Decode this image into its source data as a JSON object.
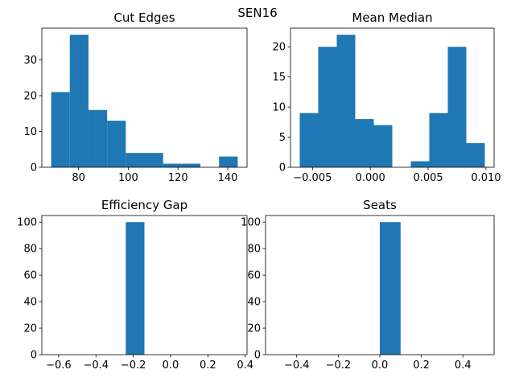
{
  "title": "SEN16",
  "chart_data": [
    {
      "type": "histogram",
      "title": "Cut Edges",
      "color": "#1f77b4",
      "bins": [
        69,
        76.5,
        84,
        91.5,
        99,
        106.5,
        114,
        121.5,
        129,
        136.5,
        144
      ],
      "values": [
        21,
        37,
        16,
        13,
        4,
        4,
        1,
        1,
        0,
        3
      ],
      "xlim": [
        65.25,
        147.75
      ],
      "xticks": [
        80,
        100,
        120,
        140
      ],
      "ylim": [
        0,
        38.85
      ],
      "yticks": [
        0,
        10,
        20,
        30
      ]
    },
    {
      "type": "histogram",
      "title": "Mean Median",
      "color": "#1f77b4",
      "bins": [
        -0.0061,
        -0.0045,
        -0.0029,
        -0.0013,
        0.0003,
        0.0019,
        0.0035,
        0.0051,
        0.0067,
        0.0083,
        0.0099
      ],
      "values": [
        9,
        20,
        22,
        8,
        7,
        0,
        1,
        9,
        20,
        4
      ],
      "xlim": [
        -0.0069,
        0.0107
      ],
      "xticks": [
        {
          "value": -0.005,
          "label": "−0.005"
        },
        {
          "value": 0,
          "label": "0.000"
        },
        0.005,
        {
          "value": 0.01,
          "label": "0.010"
        }
      ],
      "ylim": [
        0,
        23.1
      ],
      "yticks": [
        0,
        5,
        10,
        15,
        20
      ]
    },
    {
      "type": "histogram",
      "title": "Efficiency Gap",
      "color": "#1f77b4",
      "bins": [
        -0.64,
        -0.54,
        -0.44,
        -0.34,
        -0.24,
        -0.14,
        -0.04,
        0.06,
        0.16,
        0.26,
        0.36
      ],
      "values": [
        0,
        0,
        0,
        0,
        100,
        0,
        0,
        0,
        0,
        0
      ],
      "xlim": [
        -0.69,
        0.41
      ],
      "xticks": [
        {
          "value": -0.6,
          "label": "−0.6"
        },
        {
          "value": -0.4,
          "label": "−0.4"
        },
        {
          "value": -0.2,
          "label": "−0.2"
        },
        {
          "value": 0,
          "label": "0.0"
        },
        0.2,
        0.4
      ],
      "ylim": [
        0,
        105
      ],
      "yticks": [
        0,
        20,
        40,
        60,
        80,
        100
      ]
    },
    {
      "type": "histogram",
      "title": "Seats",
      "color": "#1f77b4",
      "bins": [
        -0.5,
        -0.4,
        -0.3,
        -0.2,
        -0.1,
        0,
        0.1,
        0.2,
        0.3,
        0.4,
        0.5
      ],
      "values": [
        0,
        0,
        0,
        0,
        0,
        100,
        0,
        0,
        0,
        0
      ],
      "xlim": [
        -0.55,
        0.55
      ],
      "xticks": [
        {
          "value": -0.4,
          "label": "−0.4"
        },
        {
          "value": -0.2,
          "label": "−0.2"
        },
        {
          "value": 0,
          "label": "0.0"
        },
        0.2,
        0.4
      ],
      "ylim": [
        0,
        105
      ],
      "yticks": [
        0,
        20,
        40,
        60,
        80,
        100
      ]
    }
  ]
}
